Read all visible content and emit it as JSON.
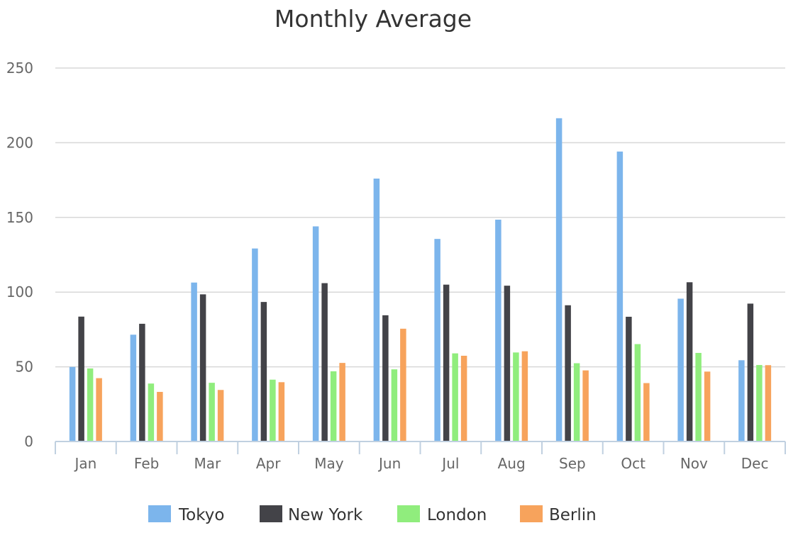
{
  "chart_data": {
    "type": "bar",
    "title": "Monthly Average",
    "xlabel": "",
    "ylabel": "",
    "ylim": [
      0,
      250
    ],
    "yticks": [
      0,
      50,
      100,
      150,
      200,
      250
    ],
    "grid": true,
    "legend_position": "bottom",
    "categories": [
      "Jan",
      "Feb",
      "Mar",
      "Apr",
      "May",
      "Jun",
      "Jul",
      "Aug",
      "Sep",
      "Oct",
      "Nov",
      "Dec"
    ],
    "series": [
      {
        "name": "Tokyo",
        "color": "#7cb5ec",
        "values": [
          49.9,
          71.5,
          106.4,
          129.2,
          144.0,
          176.0,
          135.6,
          148.5,
          216.4,
          194.1,
          95.6,
          54.4
        ]
      },
      {
        "name": "New York",
        "color": "#434348",
        "values": [
          83.6,
          78.8,
          98.5,
          93.4,
          106.0,
          84.5,
          105.0,
          104.3,
          91.2,
          83.5,
          106.6,
          92.3
        ]
      },
      {
        "name": "London",
        "color": "#90ed7d",
        "values": [
          48.9,
          38.8,
          39.3,
          41.4,
          47.0,
          48.3,
          59.0,
          59.6,
          52.4,
          65.2,
          59.3,
          51.2
        ]
      },
      {
        "name": "Berlin",
        "color": "#f7a35c",
        "values": [
          42.4,
          33.2,
          34.5,
          39.7,
          52.6,
          75.5,
          57.4,
          60.4,
          47.6,
          39.1,
          46.8,
          51.1
        ]
      }
    ]
  }
}
